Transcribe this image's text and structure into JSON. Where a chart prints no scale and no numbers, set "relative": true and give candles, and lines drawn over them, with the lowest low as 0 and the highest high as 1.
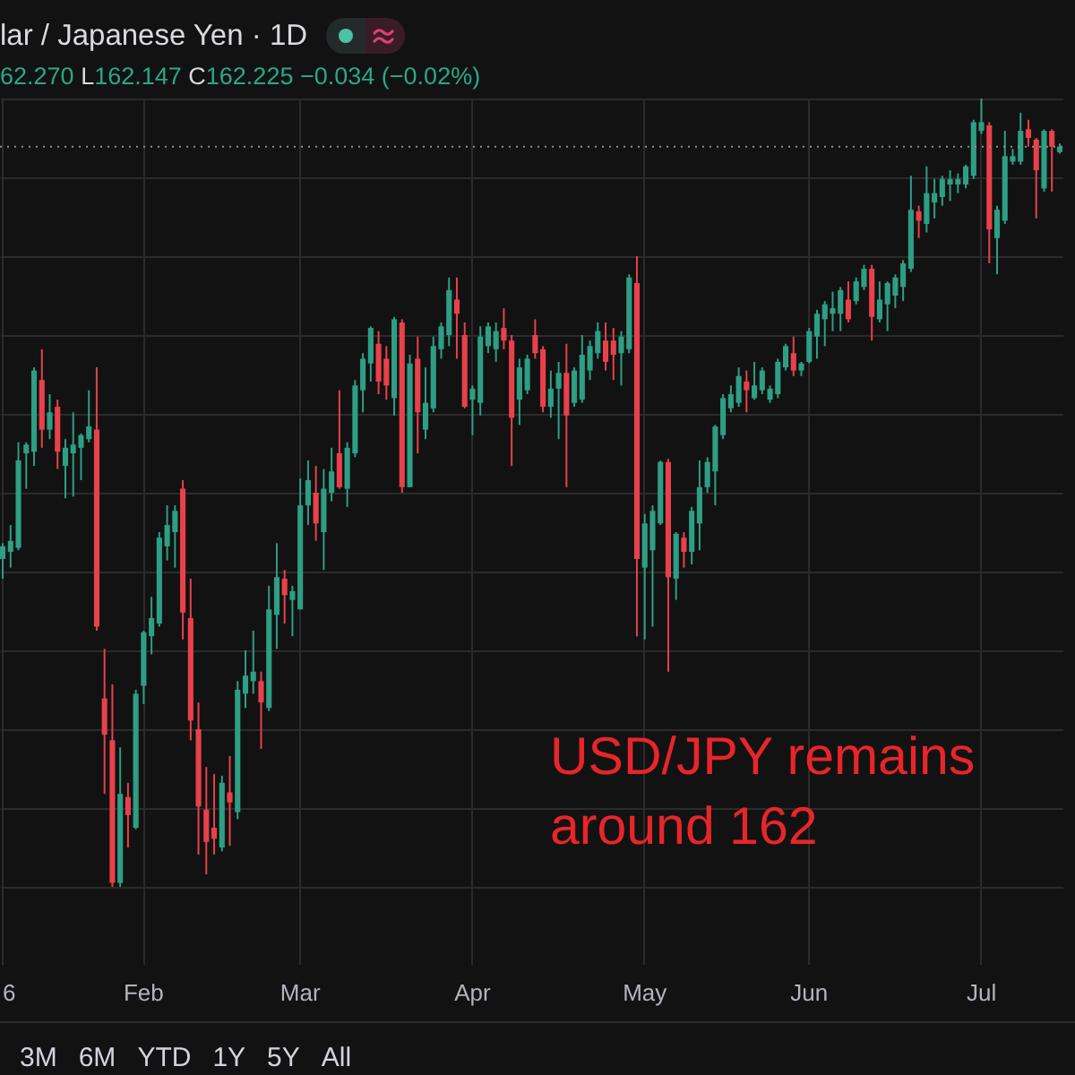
{
  "chart_data": {
    "type": "candlestick",
    "title": "lar / Japanese Yen · 1D",
    "subtitle": "62.270 L162.147 C162.225 −0.034 (−0.02%)",
    "annotations": [
      "USD/JPY remains around 162",
      "3M",
      "6M",
      "YTD",
      "1Y",
      "5Y",
      "All"
    ],
    "relative": true,
    "grid": true,
    "categories": [
      "6",
      null,
      null,
      null,
      null,
      null,
      null,
      null,
      null,
      null,
      null,
      null,
      null,
      null,
      null,
      null,
      null,
      null,
      "Feb",
      null,
      null,
      null,
      null,
      null,
      null,
      null,
      null,
      null,
      null,
      null,
      null,
      null,
      null,
      null,
      null,
      null,
      null,
      null,
      "Mar",
      null,
      null,
      null,
      null,
      null,
      null,
      null,
      null,
      null,
      null,
      null,
      null,
      null,
      null,
      null,
      null,
      null,
      null,
      null,
      null,
      null,
      "Apr",
      null,
      null,
      null,
      null,
      null,
      null,
      null,
      null,
      null,
      null,
      null,
      null,
      null,
      null,
      null,
      null,
      null,
      null,
      null,
      null,
      null,
      "May",
      null,
      null,
      null,
      null,
      null,
      null,
      null,
      null,
      null,
      null,
      null,
      null,
      null,
      null,
      null,
      null,
      null,
      null,
      null,
      null,
      "Jun",
      null,
      null,
      null,
      null,
      null,
      null,
      null,
      null,
      null,
      null,
      null,
      null,
      null,
      null,
      null,
      null,
      null,
      null,
      null,
      null,
      null,
      "Jul",
      null,
      null,
      null,
      null,
      null,
      null,
      null,
      null,
      null,
      null
    ],
    "ohlc": [
      [
        0.416,
        0.436,
        0.391,
        0.432
      ],
      [
        0.425,
        0.459,
        0.405,
        0.439
      ],
      [
        0.43,
        0.564,
        0.427,
        0.541
      ],
      [
        0.55,
        0.564,
        0.505,
        0.561
      ],
      [
        0.552,
        0.659,
        0.534,
        0.655
      ],
      [
        0.643,
        0.682,
        0.557,
        0.58
      ],
      [
        0.58,
        0.625,
        0.568,
        0.602
      ],
      [
        0.609,
        0.618,
        0.53,
        0.552
      ],
      [
        0.534,
        0.568,
        0.493,
        0.557
      ],
      [
        0.55,
        0.602,
        0.495,
        0.561
      ],
      [
        0.557,
        0.575,
        0.516,
        0.573
      ],
      [
        0.568,
        0.63,
        0.564,
        0.584
      ],
      [
        0.58,
        0.659,
        0.325,
        0.33
      ],
      [
        0.239,
        0.302,
        0.118,
        0.193
      ],
      [
        0.186,
        0.257,
        0,
        0.005
      ],
      [
        0.005,
        0.177,
        0,
        0.118
      ],
      [
        0.114,
        0.132,
        0.05,
        0.091
      ],
      [
        0.075,
        0.25,
        0.073,
        0.245
      ],
      [
        0.255,
        0.325,
        0.232,
        0.323
      ],
      [
        0.318,
        0.368,
        0.295,
        0.341
      ],
      [
        0.334,
        0.45,
        0.33,
        0.443
      ],
      [
        0.432,
        0.484,
        0.414,
        0.459
      ],
      [
        0.45,
        0.484,
        0.405,
        0.477
      ],
      [
        0.505,
        0.516,
        0.314,
        0.348
      ],
      [
        0.341,
        0.391,
        0.186,
        0.211
      ],
      [
        0.2,
        0.234,
        0.041,
        0.102
      ],
      [
        0.098,
        0.152,
        0.016,
        0.057
      ],
      [
        0.075,
        0.143,
        0.041,
        0.061
      ],
      [
        0.05,
        0.141,
        0.045,
        0.132
      ],
      [
        0.12,
        0.166,
        0.052,
        0.107
      ],
      [
        0.095,
        0.261,
        0.086,
        0.25
      ],
      [
        0.245,
        0.3,
        0.227,
        0.268
      ],
      [
        0.261,
        0.325,
        0.245,
        0.273
      ],
      [
        0.261,
        0.273,
        0.175,
        0.234
      ],
      [
        0.227,
        0.382,
        0.223,
        0.352
      ],
      [
        0.345,
        0.436,
        0.302,
        0.393
      ],
      [
        0.391,
        0.402,
        0.334,
        0.37
      ],
      [
        0.364,
        0.382,
        0.318,
        0.375
      ],
      [
        0.352,
        0.518,
        0.352,
        0.484
      ],
      [
        0.484,
        0.541,
        0.459,
        0.516
      ],
      [
        0.5,
        0.534,
        0.439,
        0.461
      ],
      [
        0.45,
        0.53,
        0.402,
        0.505
      ],
      [
        0.5,
        0.557,
        0.489,
        0.527
      ],
      [
        0.55,
        0.63,
        0.505,
        0.507
      ],
      [
        0.505,
        0.564,
        0.482,
        0.557
      ],
      [
        0.55,
        0.643,
        0.545,
        0.636
      ],
      [
        0.63,
        0.677,
        0.602,
        0.67
      ],
      [
        0.664,
        0.711,
        0.641,
        0.709
      ],
      [
        0.689,
        0.705,
        0.625,
        0.641
      ],
      [
        0.67,
        0.686,
        0.618,
        0.636
      ],
      [
        0.62,
        0.723,
        0.598,
        0.72
      ],
      [
        0.716,
        0.72,
        0.5,
        0.507
      ],
      [
        0.507,
        0.675,
        0.507,
        0.664
      ],
      [
        0.67,
        0.698,
        0.55,
        0.602
      ],
      [
        0.58,
        0.659,
        0.568,
        0.614
      ],
      [
        0.607,
        0.698,
        0.602,
        0.686
      ],
      [
        0.682,
        0.716,
        0.67,
        0.711
      ],
      [
        0.7,
        0.773,
        0.686,
        0.757
      ],
      [
        0.745,
        0.773,
        0.67,
        0.727
      ],
      [
        0.7,
        0.716,
        0.607,
        0.609
      ],
      [
        0.618,
        0.636,
        0.573,
        0.632
      ],
      [
        0.614,
        0.711,
        0.598,
        0.698
      ],
      [
        0.686,
        0.716,
        0.677,
        0.711
      ],
      [
        0.682,
        0.716,
        0.666,
        0.705
      ],
      [
        0.709,
        0.734,
        0.682,
        0.693
      ],
      [
        0.693,
        0.7,
        0.534,
        0.595
      ],
      [
        0.618,
        0.67,
        0.586,
        0.659
      ],
      [
        0.63,
        0.675,
        0.625,
        0.67
      ],
      [
        0.7,
        0.72,
        0.67,
        0.677
      ],
      [
        0.682,
        0.686,
        0.602,
        0.609
      ],
      [
        0.609,
        0.655,
        0.595,
        0.632
      ],
      [
        0.632,
        0.666,
        0.568,
        0.652
      ],
      [
        0.652,
        0.689,
        0.507,
        0.598
      ],
      [
        0.614,
        0.659,
        0.609,
        0.655
      ],
      [
        0.618,
        0.7,
        0.614,
        0.675
      ],
      [
        0.655,
        0.693,
        0.643,
        0.686
      ],
      [
        0.677,
        0.716,
        0.67,
        0.705
      ],
      [
        0.693,
        0.716,
        0.655,
        0.666
      ],
      [
        0.693,
        0.709,
        0.643,
        0.675
      ],
      [
        0.677,
        0.705,
        0.636,
        0.698
      ],
      [
        0.682,
        0.777,
        0.677,
        0.773
      ],
      [
        0.766,
        0.8,
        0.318,
        0.416
      ],
      [
        0.405,
        0.473,
        0.314,
        0.461
      ],
      [
        0.427,
        0.484,
        0.33,
        0.477
      ],
      [
        0.461,
        0.541,
        0.459,
        0.539
      ],
      [
        0.539,
        0.543,
        0.273,
        0.393
      ],
      [
        0.391,
        0.45,
        0.364,
        0.448
      ],
      [
        0.443,
        0.45,
        0.405,
        0.425
      ],
      [
        0.425,
        0.482,
        0.409,
        0.477
      ],
      [
        0.461,
        0.541,
        0.427,
        0.507
      ],
      [
        0.507,
        0.545,
        0.5,
        0.539
      ],
      [
        0.527,
        0.586,
        0.484,
        0.584
      ],
      [
        0.573,
        0.625,
        0.568,
        0.62
      ],
      [
        0.607,
        0.636,
        0.602,
        0.625
      ],
      [
        0.614,
        0.659,
        0.609,
        0.648
      ],
      [
        0.641,
        0.655,
        0.602,
        0.63
      ],
      [
        0.62,
        0.666,
        0.618,
        0.636
      ],
      [
        0.63,
        0.659,
        0.625,
        0.655
      ],
      [
        0.618,
        0.636,
        0.614,
        0.632
      ],
      [
        0.625,
        0.67,
        0.62,
        0.666
      ],
      [
        0.659,
        0.689,
        0.655,
        0.686
      ],
      [
        0.677,
        0.698,
        0.648,
        0.655
      ],
      [
        0.655,
        0.666,
        0.648,
        0.664
      ],
      [
        0.666,
        0.709,
        0.664,
        0.705
      ],
      [
        0.698,
        0.732,
        0.67,
        0.727
      ],
      [
        0.72,
        0.743,
        0.686,
        0.739
      ],
      [
        0.727,
        0.755,
        0.705,
        0.734
      ],
      [
        0.727,
        0.761,
        0.705,
        0.757
      ],
      [
        0.745,
        0.768,
        0.716,
        0.72
      ],
      [
        0.743,
        0.773,
        0.739,
        0.768
      ],
      [
        0.761,
        0.789,
        0.757,
        0.784
      ],
      [
        0.784,
        0.789,
        0.693,
        0.723
      ],
      [
        0.72,
        0.768,
        0.716,
        0.745
      ],
      [
        0.739,
        0.768,
        0.705,
        0.766
      ],
      [
        0.75,
        0.777,
        0.734,
        0.773
      ],
      [
        0.761,
        0.795,
        0.743,
        0.791
      ],
      [
        0.784,
        0.902,
        0.78,
        0.859
      ],
      [
        0.857,
        0.864,
        0.823,
        0.845
      ],
      [
        0.841,
        0.914,
        0.83,
        0.88
      ],
      [
        0.868,
        0.898,
        0.848,
        0.88
      ],
      [
        0.875,
        0.902,
        0.864,
        0.898
      ],
      [
        0.891,
        0.909,
        0.87,
        0.898
      ],
      [
        0.891,
        0.905,
        0.88,
        0.898
      ],
      [
        0.891,
        0.916,
        0.886,
        0.914
      ],
      [
        0.902,
        0.973,
        0.898,
        0.97
      ],
      [
        0.959,
        1,
        0.955,
        0.97
      ],
      [
        0.966,
        0.97,
        0.791,
        0.834
      ],
      [
        0.823,
        0.864,
        0.777,
        0.859
      ],
      [
        0.845,
        0.959,
        0.841,
        0.927
      ],
      [
        0.92,
        0.936,
        0.916,
        0.927
      ],
      [
        0.92,
        0.982,
        0.916,
        0.959
      ],
      [
        0.961,
        0.973,
        0.939,
        0.95
      ],
      [
        0.948,
        0.95,
        0.848,
        0.909
      ],
      [
        0.886,
        0.961,
        0.882,
        0.959
      ],
      [
        0.959,
        0.961,
        0.882,
        0.939
      ],
      [
        0.932,
        0.943,
        0.93,
        0.939
      ]
    ],
    "colors": [
      "#2e9e84",
      "#2e9e84",
      "#2e9e84",
      "#2e9e84",
      "#2e9e84",
      "#e8414b",
      "#2e9e84",
      "#e8414b",
      "#2e9e84",
      "#2e9e84",
      "#2e9e84",
      "#2e9e84",
      "#e8414b",
      "#e8414b",
      "#e8414b",
      "#2e9e84",
      "#e8414b",
      "#2e9e84",
      "#2e9e84",
      "#2e9e84",
      "#2e9e84",
      "#2e9e84",
      "#2e9e84",
      "#e8414b",
      "#e8414b",
      "#e8414b",
      "#e8414b",
      "#e8414b",
      "#2e9e84",
      "#e8414b",
      "#2e9e84",
      "#2e9e84",
      "#2e9e84",
      "#e8414b",
      "#2e9e84",
      "#2e9e84",
      "#e8414b",
      "#2e9e84",
      "#2e9e84",
      "#2e9e84",
      "#e8414b",
      "#2e9e84",
      "#2e9e84",
      "#e8414b",
      "#2e9e84",
      "#2e9e84",
      "#2e9e84",
      "#2e9e84",
      "#e8414b",
      "#e8414b",
      "#2e9e84",
      "#e8414b",
      "#2e9e84",
      "#e8414b",
      "#2e9e84",
      "#2e9e84",
      "#2e9e84",
      "#2e9e84",
      "#e8414b",
      "#e8414b",
      "#2e9e84",
      "#2e9e84",
      "#2e9e84",
      "#2e9e84",
      "#e8414b",
      "#e8414b",
      "#2e9e84",
      "#2e9e84",
      "#e8414b",
      "#e8414b",
      "#2e9e84",
      "#2e9e84",
      "#e8414b",
      "#2e9e84",
      "#2e9e84",
      "#2e9e84",
      "#2e9e84",
      "#e8414b",
      "#e8414b",
      "#2e9e84",
      "#2e9e84",
      "#e8414b",
      "#2e9e84",
      "#2e9e84",
      "#2e9e84",
      "#e8414b",
      "#2e9e84",
      "#e8414b",
      "#2e9e84",
      "#2e9e84",
      "#2e9e84",
      "#2e9e84",
      "#2e9e84",
      "#2e9e84",
      "#2e9e84",
      "#e8414b",
      "#2e9e84",
      "#2e9e84",
      "#2e9e84",
      "#2e9e84",
      "#2e9e84",
      "#e8414b",
      "#2e9e84",
      "#2e9e84",
      "#2e9e84",
      "#2e9e84",
      "#2e9e84",
      "#2e9e84",
      "#e8414b",
      "#2e9e84",
      "#2e9e84",
      "#e8414b",
      "#2e9e84",
      "#2e9e84",
      "#2e9e84",
      "#2e9e84",
      "#2e9e84",
      "#e8414b",
      "#2e9e84",
      "#2e9e84",
      "#2e9e84",
      "#2e9e84",
      "#2e9e84",
      "#2e9e84",
      "#2e9e84",
      "#2e9e84",
      "#e8414b",
      "#2e9e84",
      "#2e9e84",
      "#2e9e84",
      "#2e9e84",
      "#e8414b",
      "#e8414b",
      "#2e9e84",
      "#e8414b",
      "#2e9e84"
    ],
    "ref_lines": [
      {
        "axis": "y",
        "value": 0.939,
        "color": "#8a8d94",
        "line_style": "dotted"
      }
    ]
  }
}
